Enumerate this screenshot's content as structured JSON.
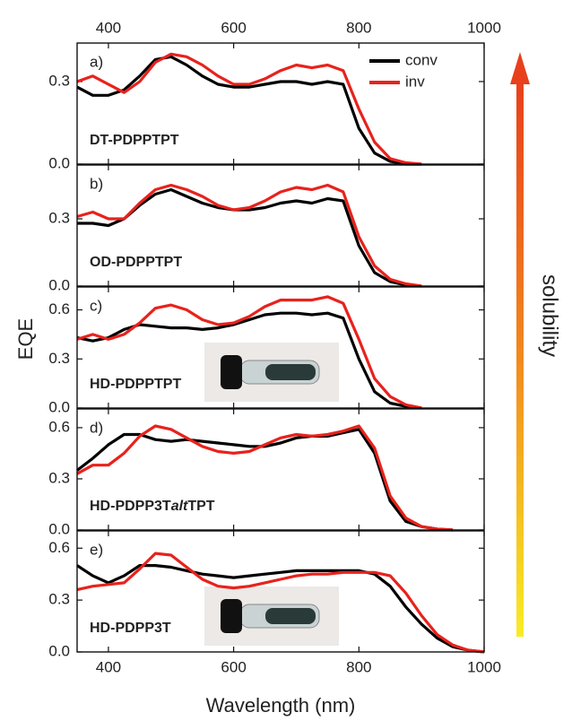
{
  "chart_data": [
    {
      "type": "line",
      "panel_label": "a)",
      "label": [
        "DT-PDPPTPT"
      ],
      "xtick_labels": "top",
      "legend": "upper right",
      "xlim": [
        350,
        1000
      ],
      "xticks": [
        400,
        600,
        800,
        1000
      ],
      "ylim": [
        0,
        0.44
      ],
      "yticks": [
        {
          "value": 0,
          "label": "0.0"
        },
        0.3
      ],
      "x": [
        350,
        375,
        400,
        425,
        450,
        475,
        500,
        525,
        550,
        575,
        600,
        625,
        650,
        675,
        700,
        725,
        750,
        775,
        800,
        825,
        850,
        875,
        900
      ],
      "series": [
        {
          "name": "conv",
          "color": "#000000",
          "values": [
            0.28,
            0.25,
            0.25,
            0.27,
            0.32,
            0.38,
            0.39,
            0.36,
            0.32,
            0.29,
            0.28,
            0.28,
            0.29,
            0.3,
            0.3,
            0.29,
            0.3,
            0.29,
            0.13,
            0.04,
            0.01,
            0,
            0
          ]
        },
        {
          "name": "inv",
          "color": "#e8221c",
          "values": [
            0.3,
            0.32,
            0.29,
            0.26,
            0.3,
            0.37,
            0.4,
            0.39,
            0.36,
            0.32,
            0.29,
            0.29,
            0.31,
            0.34,
            0.36,
            0.35,
            0.36,
            0.34,
            0.2,
            0.08,
            0.02,
            0.005,
            0
          ]
        }
      ]
    },
    {
      "type": "line",
      "panel_label": "b)",
      "label": [
        "OD-PDPPTPT"
      ],
      "xtick_labels": "none",
      "xlim": [
        350,
        1000
      ],
      "xticks": [
        400,
        600,
        800,
        1000
      ],
      "ylim": [
        0,
        0.54
      ],
      "yticks": [
        {
          "value": 0,
          "label": "0.0"
        },
        0.3
      ],
      "x": [
        350,
        375,
        400,
        425,
        450,
        475,
        500,
        525,
        550,
        575,
        600,
        625,
        650,
        675,
        700,
        725,
        750,
        775,
        800,
        825,
        850,
        875,
        900
      ],
      "series": [
        {
          "color": "#000000",
          "values": [
            0.28,
            0.28,
            0.27,
            0.3,
            0.36,
            0.41,
            0.43,
            0.4,
            0.37,
            0.35,
            0.34,
            0.34,
            0.35,
            0.37,
            0.38,
            0.37,
            0.39,
            0.38,
            0.18,
            0.06,
            0.02,
            0.005,
            0
          ]
        },
        {
          "color": "#e8221c",
          "values": [
            0.31,
            0.33,
            0.3,
            0.3,
            0.37,
            0.43,
            0.45,
            0.43,
            0.4,
            0.36,
            0.34,
            0.35,
            0.38,
            0.42,
            0.44,
            0.43,
            0.45,
            0.42,
            0.22,
            0.09,
            0.03,
            0.01,
            0
          ]
        }
      ]
    },
    {
      "type": "line",
      "panel_label": "c)",
      "label": [
        "HD-PDPPTPT"
      ],
      "xtick_labels": "none",
      "inset": true,
      "xlim": [
        350,
        1000
      ],
      "xticks": [
        400,
        600,
        800,
        1000
      ],
      "ylim": [
        0,
        0.74
      ],
      "yticks": [
        {
          "value": 0,
          "label": "0.0"
        },
        0.3,
        0.6
      ],
      "x": [
        350,
        375,
        400,
        425,
        450,
        475,
        500,
        525,
        550,
        575,
        600,
        625,
        650,
        675,
        700,
        725,
        750,
        775,
        800,
        825,
        850,
        875,
        900
      ],
      "series": [
        {
          "color": "#000000",
          "values": [
            0.43,
            0.41,
            0.43,
            0.48,
            0.51,
            0.5,
            0.49,
            0.49,
            0.48,
            0.49,
            0.51,
            0.54,
            0.57,
            0.58,
            0.58,
            0.57,
            0.58,
            0.55,
            0.3,
            0.1,
            0.03,
            0.01,
            0
          ]
        },
        {
          "color": "#e8221c",
          "values": [
            0.42,
            0.45,
            0.42,
            0.45,
            0.52,
            0.61,
            0.63,
            0.6,
            0.54,
            0.51,
            0.52,
            0.56,
            0.62,
            0.66,
            0.66,
            0.66,
            0.68,
            0.64,
            0.42,
            0.18,
            0.07,
            0.02,
            0
          ]
        }
      ]
    },
    {
      "type": "line",
      "panel_label": "d)",
      "label": [
        "HD-PDPP3T",
        "alt",
        "TPT"
      ],
      "xtick_labels": "none",
      "xlim": [
        350,
        1000
      ],
      "xticks": [
        400,
        600,
        800,
        1000
      ],
      "ylim": [
        0,
        0.71
      ],
      "yticks": [
        {
          "value": 0,
          "label": "0.0"
        },
        0.3,
        0.6
      ],
      "x": [
        350,
        375,
        400,
        425,
        450,
        475,
        500,
        525,
        550,
        575,
        600,
        625,
        650,
        675,
        700,
        725,
        750,
        775,
        800,
        825,
        850,
        875,
        900,
        925,
        950
      ],
      "series": [
        {
          "color": "#000000",
          "values": [
            0.35,
            0.42,
            0.5,
            0.56,
            0.56,
            0.53,
            0.52,
            0.53,
            0.52,
            0.51,
            0.5,
            0.49,
            0.49,
            0.51,
            0.54,
            0.55,
            0.55,
            0.57,
            0.59,
            0.45,
            0.17,
            0.05,
            0.02,
            0.005,
            0
          ]
        },
        {
          "color": "#e8221c",
          "values": [
            0.33,
            0.38,
            0.38,
            0.45,
            0.55,
            0.61,
            0.59,
            0.54,
            0.49,
            0.46,
            0.45,
            0.46,
            0.5,
            0.54,
            0.56,
            0.55,
            0.56,
            0.58,
            0.61,
            0.48,
            0.2,
            0.07,
            0.02,
            0.005,
            0
          ]
        }
      ]
    },
    {
      "type": "line",
      "panel_label": "e)",
      "label": [
        "HD-PDPP3T"
      ],
      "xtick_labels": "bottom",
      "inset": true,
      "xlim": [
        350,
        1000
      ],
      "xticks": [
        400,
        600,
        800,
        1000
      ],
      "ylim": [
        0,
        0.7
      ],
      "yticks": [
        {
          "value": 0,
          "label": "0.0"
        },
        0.3,
        0.6
      ],
      "x": [
        350,
        375,
        400,
        425,
        450,
        475,
        500,
        525,
        550,
        575,
        600,
        625,
        650,
        675,
        700,
        725,
        750,
        775,
        800,
        825,
        850,
        875,
        900,
        925,
        950,
        975,
        1000
      ],
      "series": [
        {
          "color": "#000000",
          "values": [
            0.5,
            0.44,
            0.4,
            0.44,
            0.5,
            0.5,
            0.49,
            0.47,
            0.45,
            0.44,
            0.43,
            0.44,
            0.45,
            0.46,
            0.47,
            0.47,
            0.47,
            0.47,
            0.47,
            0.45,
            0.38,
            0.26,
            0.16,
            0.08,
            0.03,
            0.01,
            0
          ]
        },
        {
          "color": "#e8221c",
          "values": [
            0.36,
            0.38,
            0.39,
            0.4,
            0.48,
            0.57,
            0.56,
            0.49,
            0.42,
            0.38,
            0.37,
            0.38,
            0.4,
            0.42,
            0.44,
            0.45,
            0.45,
            0.46,
            0.46,
            0.46,
            0.44,
            0.34,
            0.21,
            0.1,
            0.04,
            0.01,
            0
          ]
        }
      ]
    }
  ],
  "shared": {
    "xlabel": "Wavelength (nm)",
    "ylabel": "EQE",
    "annotation": "solubility"
  }
}
